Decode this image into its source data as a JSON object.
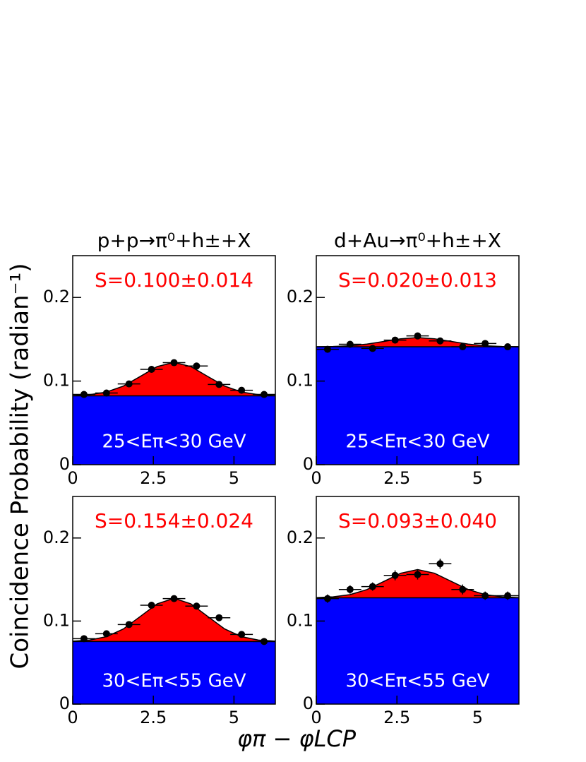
{
  "ylabel": "Coincidence Probability (radian⁻¹)",
  "xlabel": "φπ − φLCP",
  "chart_data": [
    {
      "type": "scatter",
      "title": "p+p→π⁰+h±+X",
      "annotation": "S=0.100±0.014",
      "label": "25<Eπ<30 GeV",
      "x": [
        0.349,
        1.047,
        1.745,
        2.443,
        3.142,
        3.84,
        4.538,
        5.236,
        5.934
      ],
      "values": [
        0.084,
        0.0857,
        0.0966,
        0.114,
        0.122,
        0.118,
        0.096,
        0.089,
        0.084
      ],
      "yerr": [
        0.002,
        0.002,
        0.002,
        0.002,
        0.002,
        0.002,
        0.002,
        0.002,
        0.002
      ],
      "xerr": 0.349,
      "baseline": 0.0824,
      "fit": {
        "x": [
          0,
          0.524,
          1.047,
          1.571,
          2.094,
          2.618,
          3.142,
          3.665,
          4.189,
          4.712,
          5.236,
          5.76,
          6.283
        ],
        "values": [
          0.0827,
          0.0837,
          0.0869,
          0.094,
          0.1055,
          0.1173,
          0.1224,
          0.1173,
          0.1055,
          0.094,
          0.0869,
          0.0837,
          0.0827
        ]
      },
      "xlim": [
        0,
        6.2832
      ],
      "ylim": [
        0,
        0.25
      ],
      "xticks": [
        0,
        2.5,
        5
      ],
      "yticks": [
        0,
        0.1,
        0.2
      ],
      "color": "#000000",
      "baseline_color": "#0000ff",
      "fit_color": "#ff0000"
    },
    {
      "type": "scatter",
      "title": "d+Au→π⁰+h±+X",
      "annotation": "S=0.020±0.013",
      "label": "25<Eπ<30 GeV",
      "x": [
        0.349,
        1.047,
        1.745,
        2.443,
        3.142,
        3.84,
        4.538,
        5.236,
        5.934
      ],
      "values": [
        0.138,
        0.144,
        0.139,
        0.149,
        0.154,
        0.148,
        0.141,
        0.145,
        0.141
      ],
      "yerr": [
        0.003,
        0.003,
        0.003,
        0.003,
        0.003,
        0.003,
        0.003,
        0.003,
        0.003
      ],
      "xerr": 0.349,
      "baseline": 0.141,
      "fit": {
        "x": [
          0,
          0.524,
          1.047,
          1.571,
          2.094,
          2.618,
          3.142,
          3.665,
          4.189,
          4.712,
          5.236,
          5.76,
          6.283
        ],
        "values": [
          0.1411,
          0.1414,
          0.1422,
          0.1442,
          0.1474,
          0.1506,
          0.152,
          0.1506,
          0.1474,
          0.1442,
          0.1422,
          0.1414,
          0.1411
        ]
      },
      "xlim": [
        0,
        6.2832
      ],
      "ylim": [
        0,
        0.25
      ],
      "xticks": [
        0,
        2.5,
        5
      ],
      "yticks": [
        0,
        0.1,
        0.2
      ],
      "color": "#000000",
      "baseline_color": "#0000ff",
      "fit_color": "#ff0000"
    },
    {
      "type": "scatter",
      "annotation": "S=0.154±0.024",
      "label": "30<Eπ<55 GeV",
      "x": [
        0.349,
        1.047,
        1.745,
        2.443,
        3.142,
        3.84,
        4.538,
        5.236,
        5.934
      ],
      "values": [
        0.0788,
        0.0847,
        0.0958,
        0.119,
        0.127,
        0.118,
        0.104,
        0.0839,
        0.0754
      ],
      "yerr": [
        0.002,
        0.002,
        0.002,
        0.002,
        0.002,
        0.002,
        0.002,
        0.002,
        0.002
      ],
      "xerr": 0.349,
      "baseline": 0.0754,
      "fit": {
        "x": [
          0,
          0.524,
          1.047,
          1.571,
          2.094,
          2.618,
          3.142,
          3.665,
          4.189,
          4.712,
          5.236,
          5.76,
          6.283
        ],
        "values": [
          0.0758,
          0.0771,
          0.0812,
          0.0905,
          0.1055,
          0.1207,
          0.1274,
          0.1207,
          0.1055,
          0.0905,
          0.0812,
          0.0771,
          0.0758
        ]
      },
      "xlim": [
        0,
        6.2832
      ],
      "ylim": [
        0,
        0.25
      ],
      "xticks": [
        0,
        2.5,
        5
      ],
      "yticks": [
        0,
        0.1,
        0.2
      ],
      "color": "#000000",
      "baseline_color": "#0000ff",
      "fit_color": "#ff0000"
    },
    {
      "type": "scatter",
      "annotation": "S=0.093±0.040",
      "label": "30<Eπ<55 GeV",
      "x": [
        0.349,
        1.047,
        1.745,
        2.443,
        3.142,
        3.84,
        4.538,
        5.236,
        5.934
      ],
      "values": [
        0.127,
        0.138,
        0.1415,
        0.155,
        0.156,
        0.169,
        0.138,
        0.1305,
        0.1305
      ],
      "yerr": [
        0.005,
        0.005,
        0.005,
        0.006,
        0.006,
        0.006,
        0.006,
        0.005,
        0.005
      ],
      "xerr": 0.349,
      "baseline": 0.128,
      "fit": {
        "x": [
          0,
          0.524,
          1.047,
          1.571,
          2.094,
          2.618,
          3.142,
          3.665,
          4.189,
          4.712,
          5.236,
          5.76,
          6.283
        ],
        "values": [
          0.1282,
          0.1291,
          0.1318,
          0.1379,
          0.1477,
          0.1576,
          0.162,
          0.1576,
          0.1477,
          0.1379,
          0.1318,
          0.1291,
          0.1282
        ]
      },
      "xlim": [
        0,
        6.2832
      ],
      "ylim": [
        0,
        0.25
      ],
      "xticks": [
        0,
        2.5,
        5
      ],
      "yticks": [
        0,
        0.1,
        0.2
      ],
      "color": "#000000",
      "baseline_color": "#0000ff",
      "fit_color": "#ff0000"
    }
  ]
}
